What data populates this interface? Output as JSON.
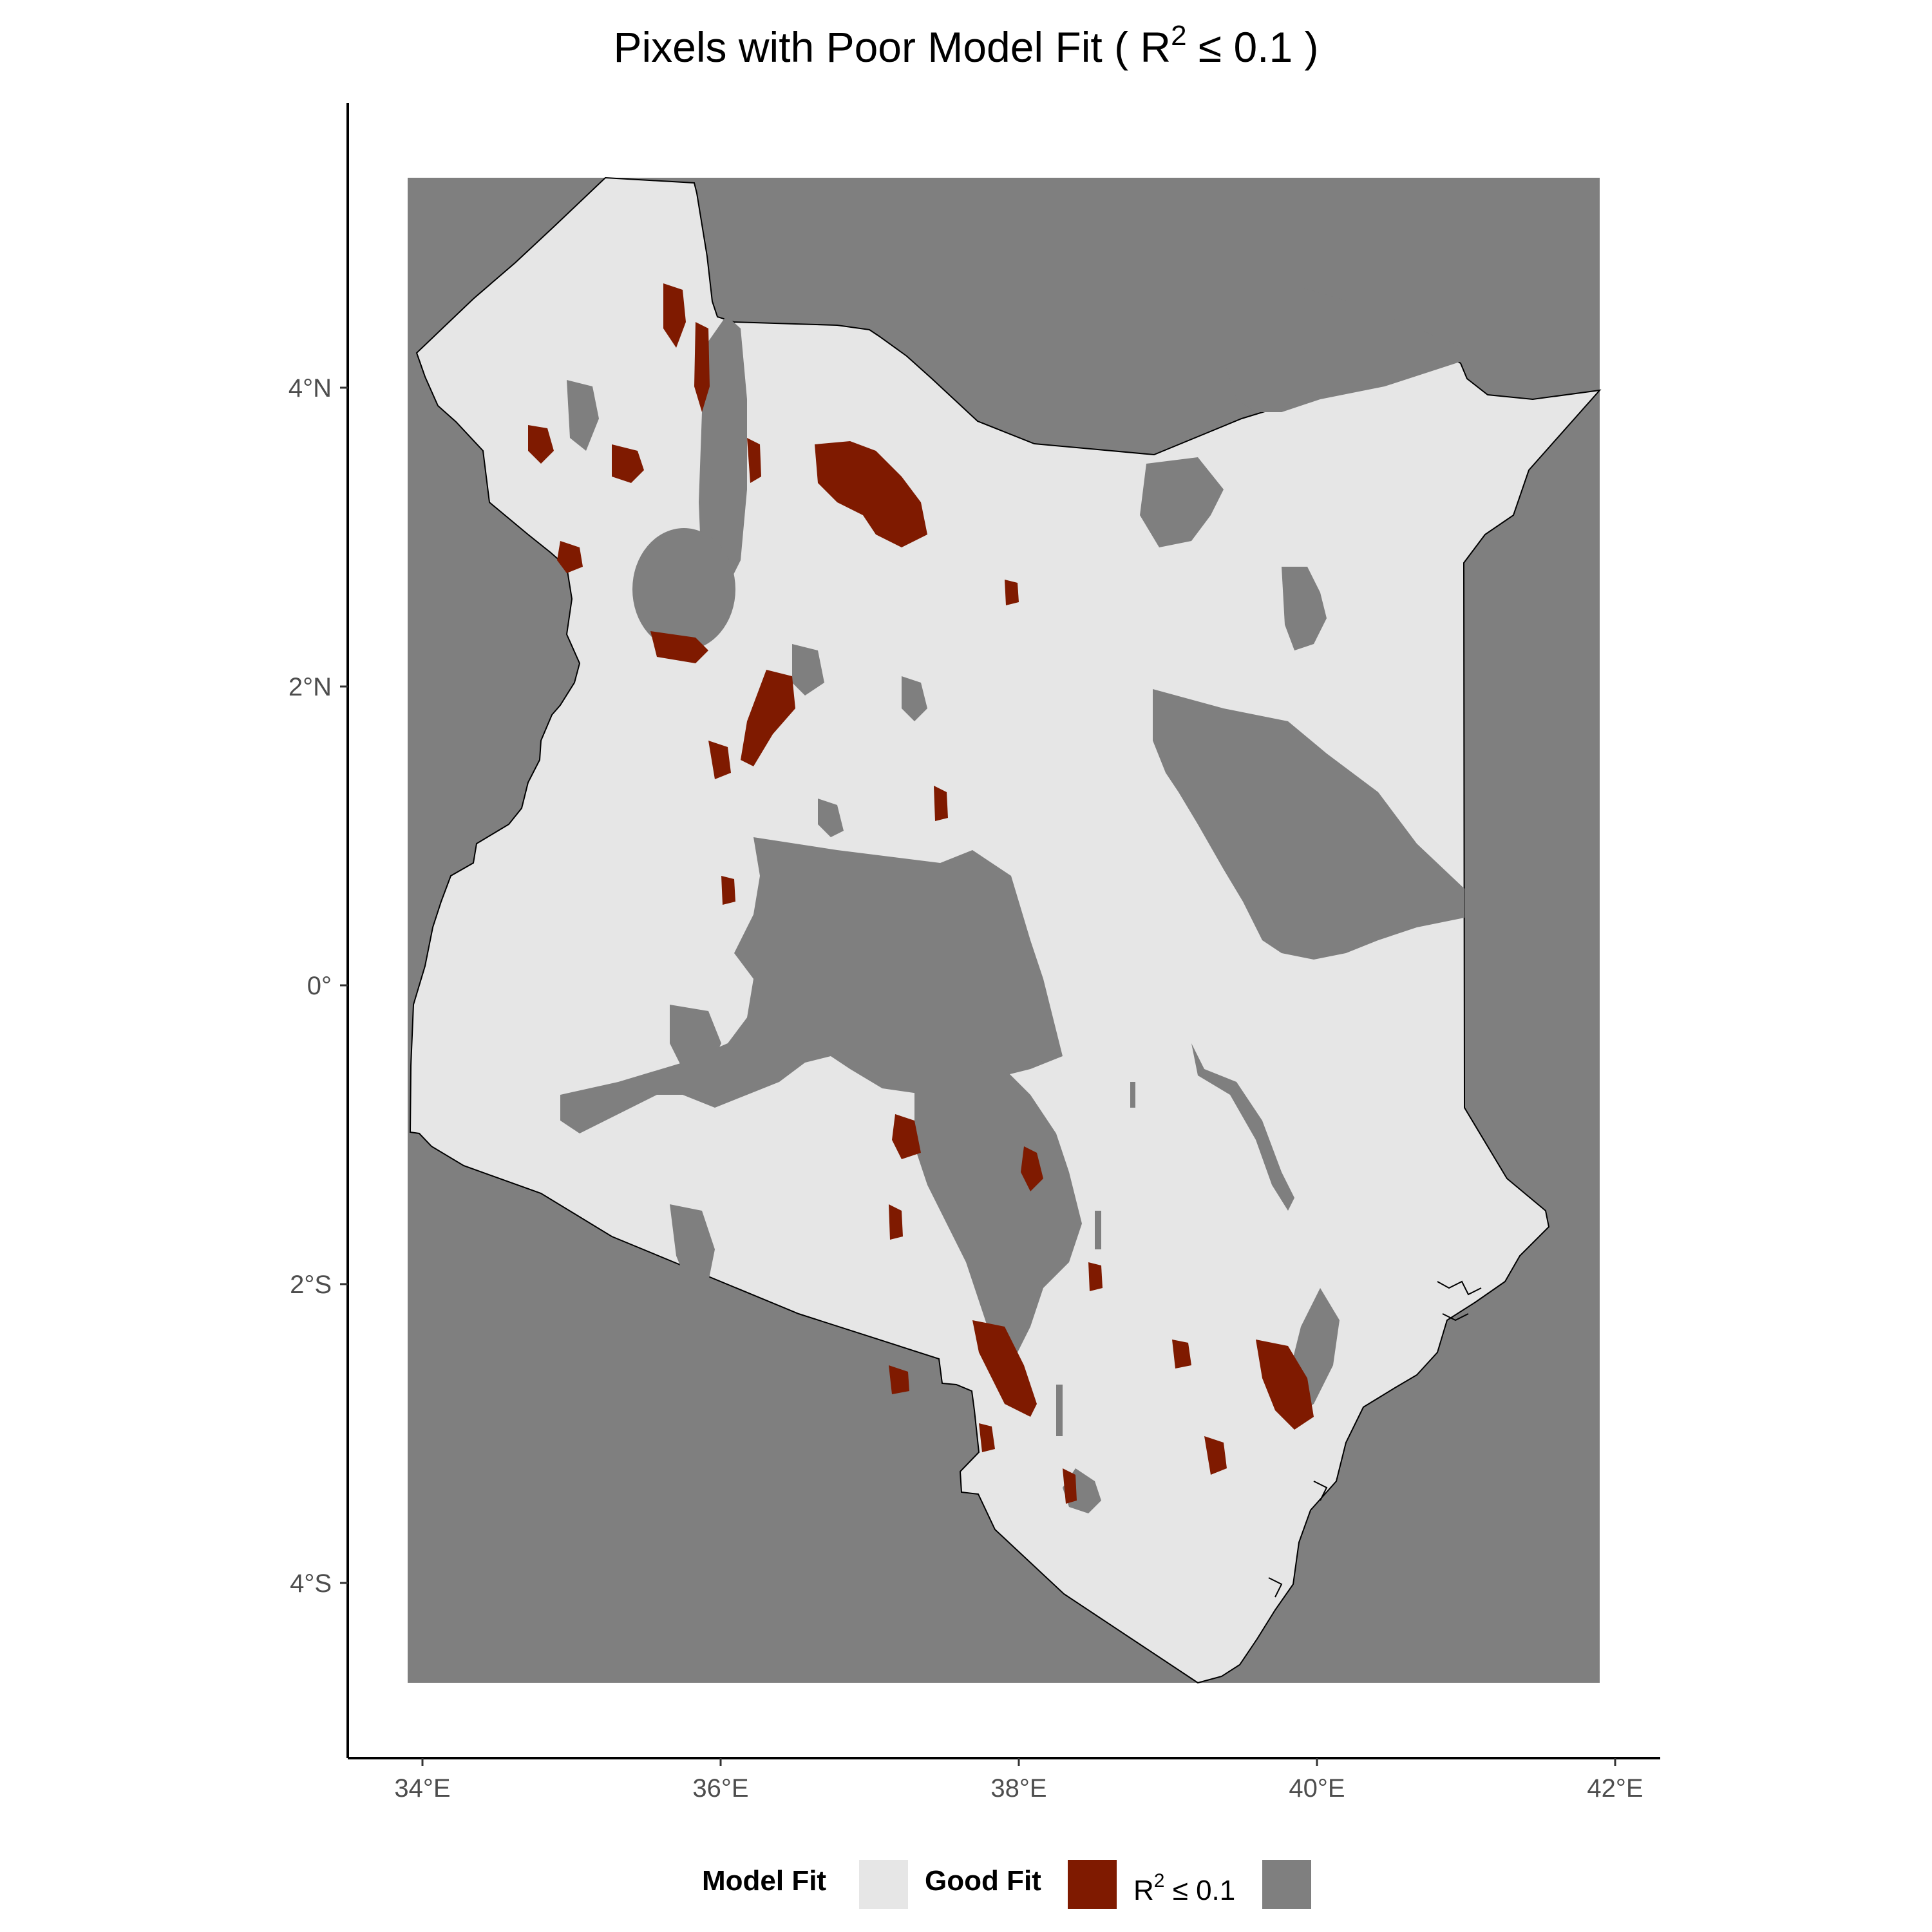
{
  "title": {
    "prefix": "Pixels with Poor Model Fit ( R",
    "superscript": "2",
    "suffix": " ≤ 0.1 )"
  },
  "axes": {
    "x_ticks": [
      "34°E",
      "36°E",
      "38°E",
      "40°E",
      "42°E"
    ],
    "y_ticks": [
      "4°N",
      "2°N",
      "0°",
      "2°S",
      "4°S"
    ]
  },
  "legend": {
    "title": "Model Fit",
    "items": [
      {
        "label": "Good Fit",
        "color": "#e6e6e6"
      },
      {
        "label_prefix": "R",
        "label_superscript": "2",
        "label_suffix": " ≤ 0.1",
        "color": "#7f1a00"
      },
      {
        "label": "",
        "color": "#7f7f7f"
      }
    ]
  },
  "colors": {
    "good_fit": "#e6e6e6",
    "poor_fit": "#7f1a00",
    "no_data": "#7f7f7f",
    "border": "#000000"
  }
}
